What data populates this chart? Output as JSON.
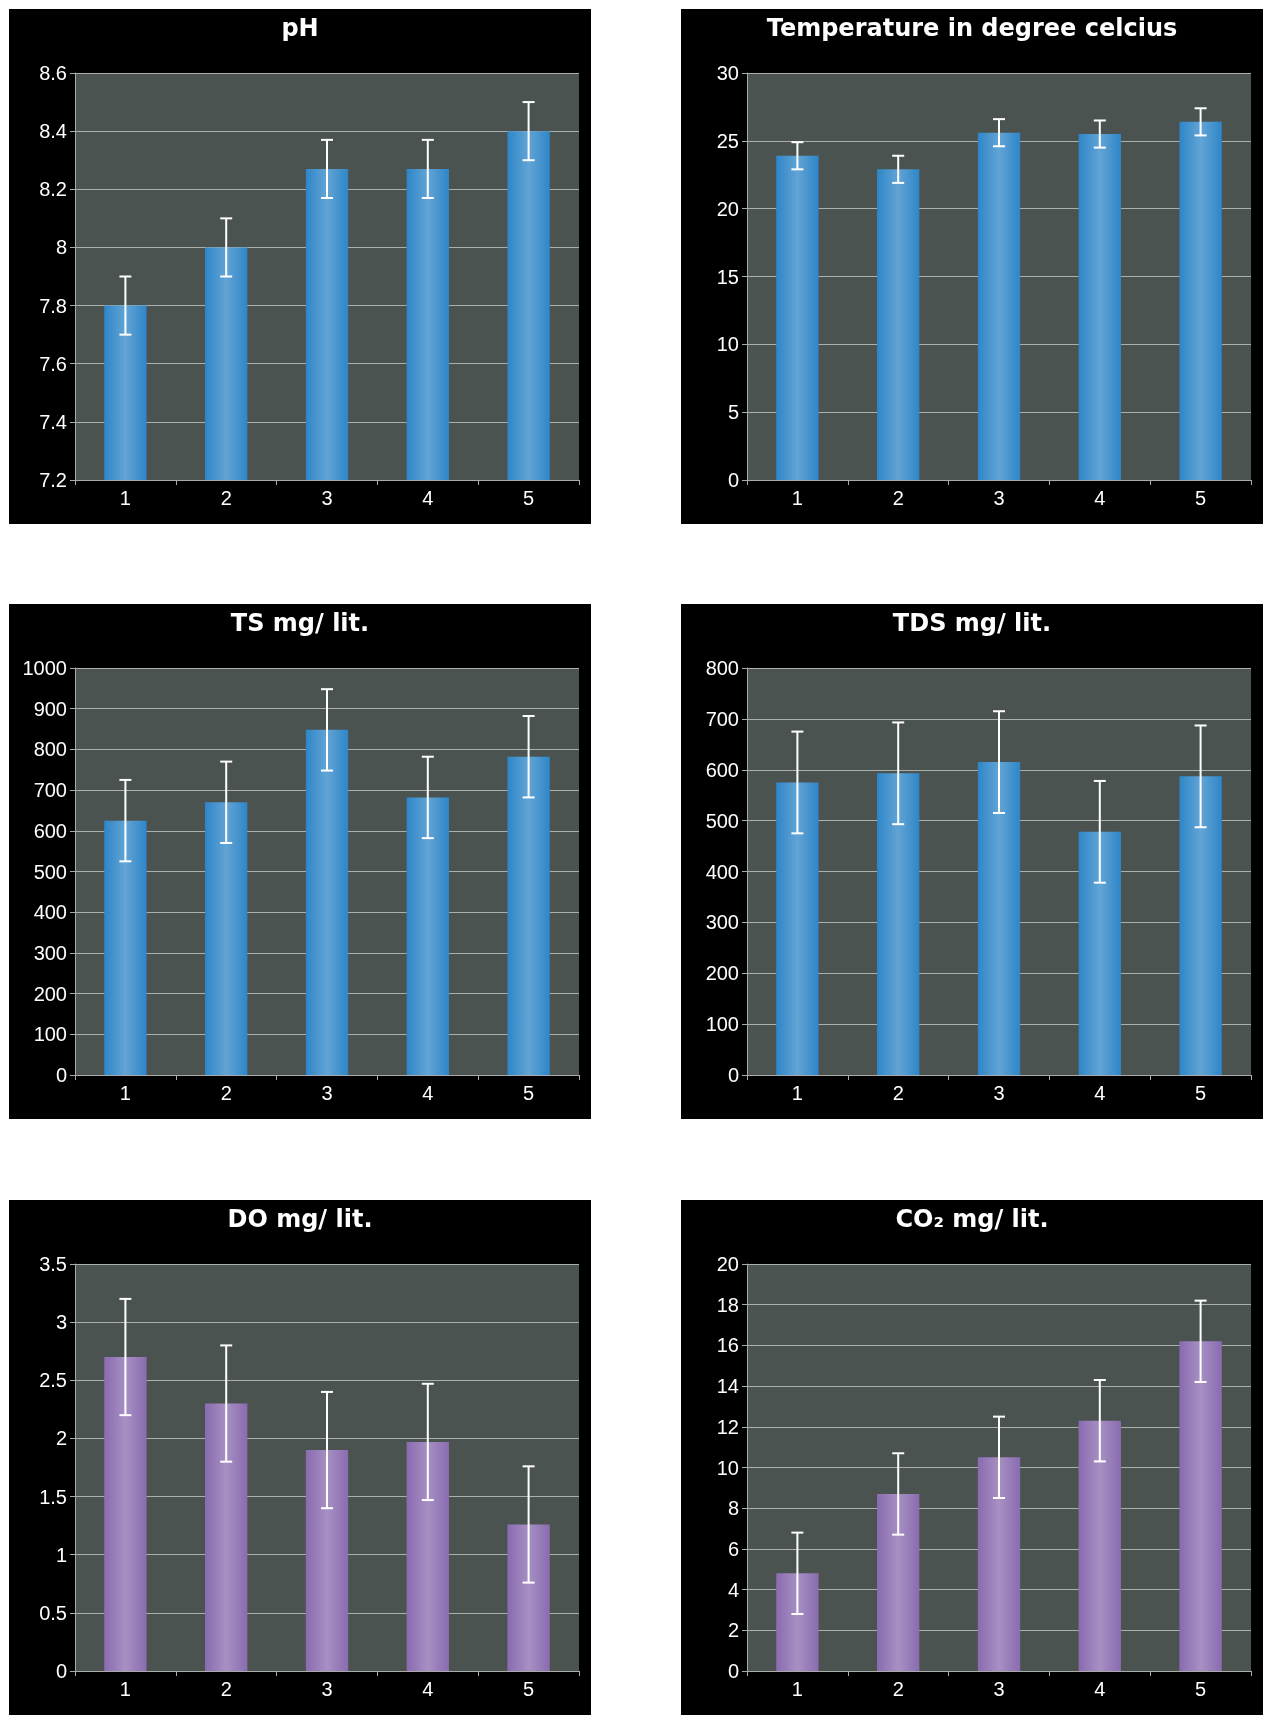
{
  "chart_data": [
    {
      "type": "bar",
      "title": "pH",
      "categories": [
        "1",
        "2",
        "3",
        "4",
        "5"
      ],
      "values": [
        7.8,
        8.0,
        8.27,
        8.27,
        8.4
      ],
      "errors": [
        0.1,
        0.1,
        0.1,
        0.1,
        0.1
      ],
      "color": "#2e86c8",
      "ylim": [
        7.2,
        8.6
      ],
      "yticks": [
        7.2,
        7.4,
        7.6,
        7.8,
        8,
        8.2,
        8.4,
        8.6
      ],
      "grid": "y"
    },
    {
      "type": "bar",
      "title": "Temperature in degree celcius",
      "categories": [
        "1",
        "2",
        "3",
        "4",
        "5"
      ],
      "values": [
        23.9,
        22.9,
        25.6,
        25.5,
        26.4
      ],
      "errors": [
        1,
        1,
        1,
        1,
        1
      ],
      "color": "#2e86c8",
      "ylim": [
        0,
        30
      ],
      "yticks": [
        0,
        5,
        10,
        15,
        20,
        25,
        30
      ],
      "grid": "y"
    },
    {
      "type": "bar",
      "title": "TS mg/ lit.",
      "categories": [
        "1",
        "2",
        "3",
        "4",
        "5"
      ],
      "values": [
        625,
        670,
        848,
        682,
        782
      ],
      "errors": [
        100,
        100,
        100,
        100,
        100
      ],
      "color": "#2e86c8",
      "ylim": [
        0,
        1000
      ],
      "yticks": [
        0,
        100,
        200,
        300,
        400,
        500,
        600,
        700,
        800,
        900,
        1000
      ],
      "grid": "y"
    },
    {
      "type": "bar",
      "title": "TDS mg/ lit.",
      "categories": [
        "1",
        "2",
        "3",
        "4",
        "5"
      ],
      "values": [
        575,
        593,
        615,
        478,
        587
      ],
      "errors": [
        100,
        100,
        100,
        100,
        100
      ],
      "color": "#2e86c8",
      "ylim": [
        0,
        800
      ],
      "yticks": [
        0,
        100,
        200,
        300,
        400,
        500,
        600,
        700,
        800
      ],
      "grid": "y"
    },
    {
      "type": "bar",
      "title": "DO mg/ lit.",
      "categories": [
        "1",
        "2",
        "3",
        "4",
        "5"
      ],
      "values": [
        2.7,
        2.3,
        1.9,
        1.97,
        1.26
      ],
      "errors": [
        0.5,
        0.5,
        0.5,
        0.5,
        0.5
      ],
      "color": "#8a6bb0",
      "ylim": [
        0,
        3.5
      ],
      "yticks": [
        0,
        0.5,
        1,
        1.5,
        2,
        2.5,
        3,
        3.5
      ],
      "grid": "y"
    },
    {
      "type": "bar",
      "title": "CO₂ mg/ lit.",
      "categories": [
        "1",
        "2",
        "3",
        "4",
        "5"
      ],
      "values": [
        4.8,
        8.7,
        10.5,
        12.3,
        16.2
      ],
      "errors": [
        2,
        2,
        2,
        2,
        2
      ],
      "color": "#8a6bb0",
      "ylim": [
        0,
        20
      ],
      "yticks": [
        0,
        2,
        4,
        6,
        8,
        10,
        12,
        14,
        16,
        18,
        20
      ],
      "grid": "y"
    }
  ]
}
